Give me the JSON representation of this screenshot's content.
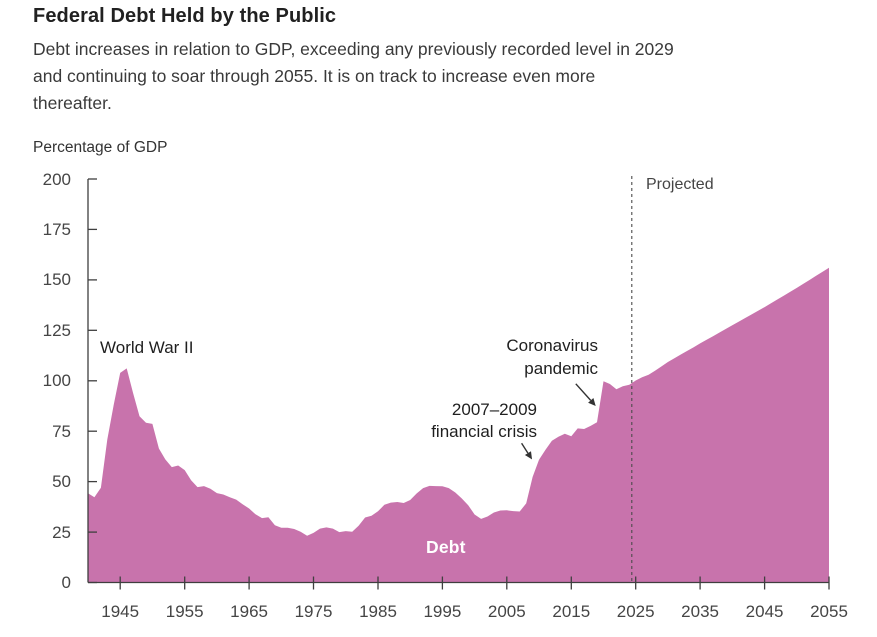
{
  "header": {
    "title": "Federal Debt Held by the Public",
    "subtitle_lines": [
      "Debt increases in relation to GDP, exceeding any previously recorded level in 2029",
      "and continuing to soar through 2055. It is on track to increase even more",
      "thereafter."
    ]
  },
  "chart_data": {
    "type": "area",
    "title": "Federal Debt Held by the Public",
    "ylabel": "Percentage of GDP",
    "xlabel": "",
    "ylim": [
      0,
      200
    ],
    "xlim": [
      1940,
      2055
    ],
    "grid": false,
    "y_ticks": [
      0,
      25,
      50,
      75,
      100,
      125,
      150,
      175,
      200
    ],
    "x_ticks": [
      1945,
      1955,
      1965,
      1975,
      1985,
      1995,
      2005,
      2015,
      2025,
      2035,
      2045,
      2055
    ],
    "series": [
      {
        "name": "Debt",
        "start_year": 1940,
        "values": [
          44.2,
          42.3,
          47.0,
          70.9,
          88.3,
          103.9,
          106.1,
          93.9,
          82.4,
          79.2,
          78.6,
          66.4,
          61.0,
          57.2,
          58.0,
          55.7,
          50.7,
          47.3,
          47.8,
          46.5,
          44.3,
          43.6,
          42.3,
          41.1,
          38.8,
          36.7,
          33.8,
          31.9,
          32.3,
          28.4,
          27.1,
          27.1,
          26.5,
          25.2,
          23.2,
          24.6,
          26.7,
          27.3,
          26.7,
          25.0,
          25.5,
          25.2,
          28.1,
          32.2,
          33.1,
          35.3,
          38.5,
          39.6,
          39.9,
          39.4,
          40.9,
          44.1,
          46.8,
          47.9,
          47.8,
          47.7,
          46.8,
          44.6,
          41.7,
          38.3,
          33.7,
          31.5,
          32.7,
          34.7,
          35.7,
          35.8,
          35.4,
          35.2,
          39.2,
          52.3,
          60.8,
          65.8,
          70.3,
          72.2,
          73.7,
          72.5,
          76.4,
          76.1,
          77.6,
          79.4,
          99.8,
          98.4,
          95.8,
          97.3,
          98.0,
          100.1,
          101.7,
          103.0,
          105.0,
          107.1,
          109.3,
          111.2,
          113.0,
          114.8,
          116.6,
          118.5,
          120.3,
          122.1,
          123.9,
          125.7,
          127.5,
          129.3,
          131.1,
          132.9,
          134.7,
          136.5,
          138.4,
          140.3,
          142.2,
          144.1,
          146.0,
          148.0,
          150.0,
          152.0,
          154.0,
          156.0
        ]
      }
    ],
    "projection": {
      "divider_year": 2024.4,
      "label": "Projected"
    },
    "area_label": "Debt",
    "annotations": [
      {
        "id": "world-war-ii",
        "text": "World War II"
      },
      {
        "id": "financial-crisis",
        "lines": [
          "2007–2009",
          "financial crisis"
        ],
        "arrow": {
          "from": {
            "year": 2007.3,
            "value": 69.0
          },
          "to": {
            "year": 2008.9,
            "value": 61.0
          }
        }
      },
      {
        "id": "coronavirus",
        "lines": [
          "Coronavirus",
          "pandemic"
        ],
        "arrow": {
          "from": {
            "year": 2015.7,
            "value": 98.5
          },
          "to": {
            "year": 2018.8,
            "value": 87.5
          }
        }
      }
    ],
    "colors": {
      "area": "#c873ac",
      "axis": "#3f3f3f",
      "divider": "#4a4a4a",
      "arrow": "#333333",
      "text": "#1f1f1f"
    }
  }
}
